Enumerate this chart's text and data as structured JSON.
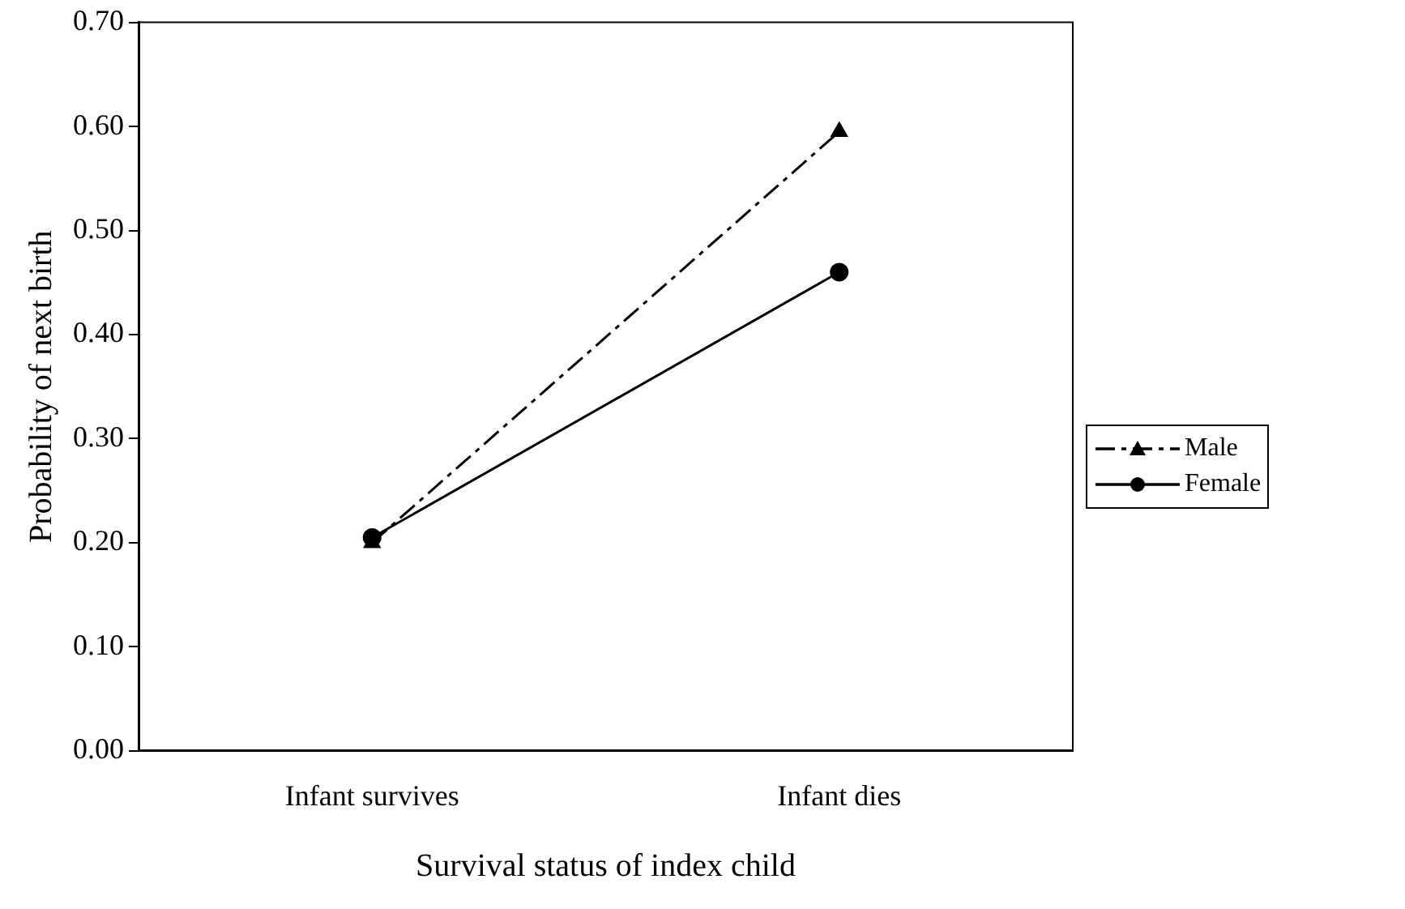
{
  "chart_data": {
    "type": "line",
    "xlabel": "Survival status of index child",
    "ylabel": "Probability of next birth",
    "categories": [
      "Infant survives",
      "Infant dies"
    ],
    "series": [
      {
        "name": "Male",
        "color": "#000000",
        "values": [
          0.2,
          0.595
        ],
        "marker": "triangle",
        "line_style": "dashed"
      },
      {
        "name": "Female",
        "color": "#000000",
        "values": [
          0.205,
          0.46
        ],
        "marker": "circle",
        "line_style": "solid"
      }
    ],
    "ylim": [
      0,
      0.7
    ],
    "yticks": [
      {
        "value": 0,
        "label": "0.00"
      },
      {
        "value": 0.1,
        "label": "0.10"
      },
      {
        "value": 0.2,
        "label": "0.20"
      },
      {
        "value": 0.3,
        "label": "0.30"
      },
      {
        "value": 0.4,
        "label": "0.40"
      },
      {
        "value": 0.5,
        "label": "0.50"
      },
      {
        "value": 0.6,
        "label": "0.60"
      },
      {
        "value": 0.7,
        "label": "0.70"
      }
    ],
    "grid": false,
    "legend": "right"
  }
}
